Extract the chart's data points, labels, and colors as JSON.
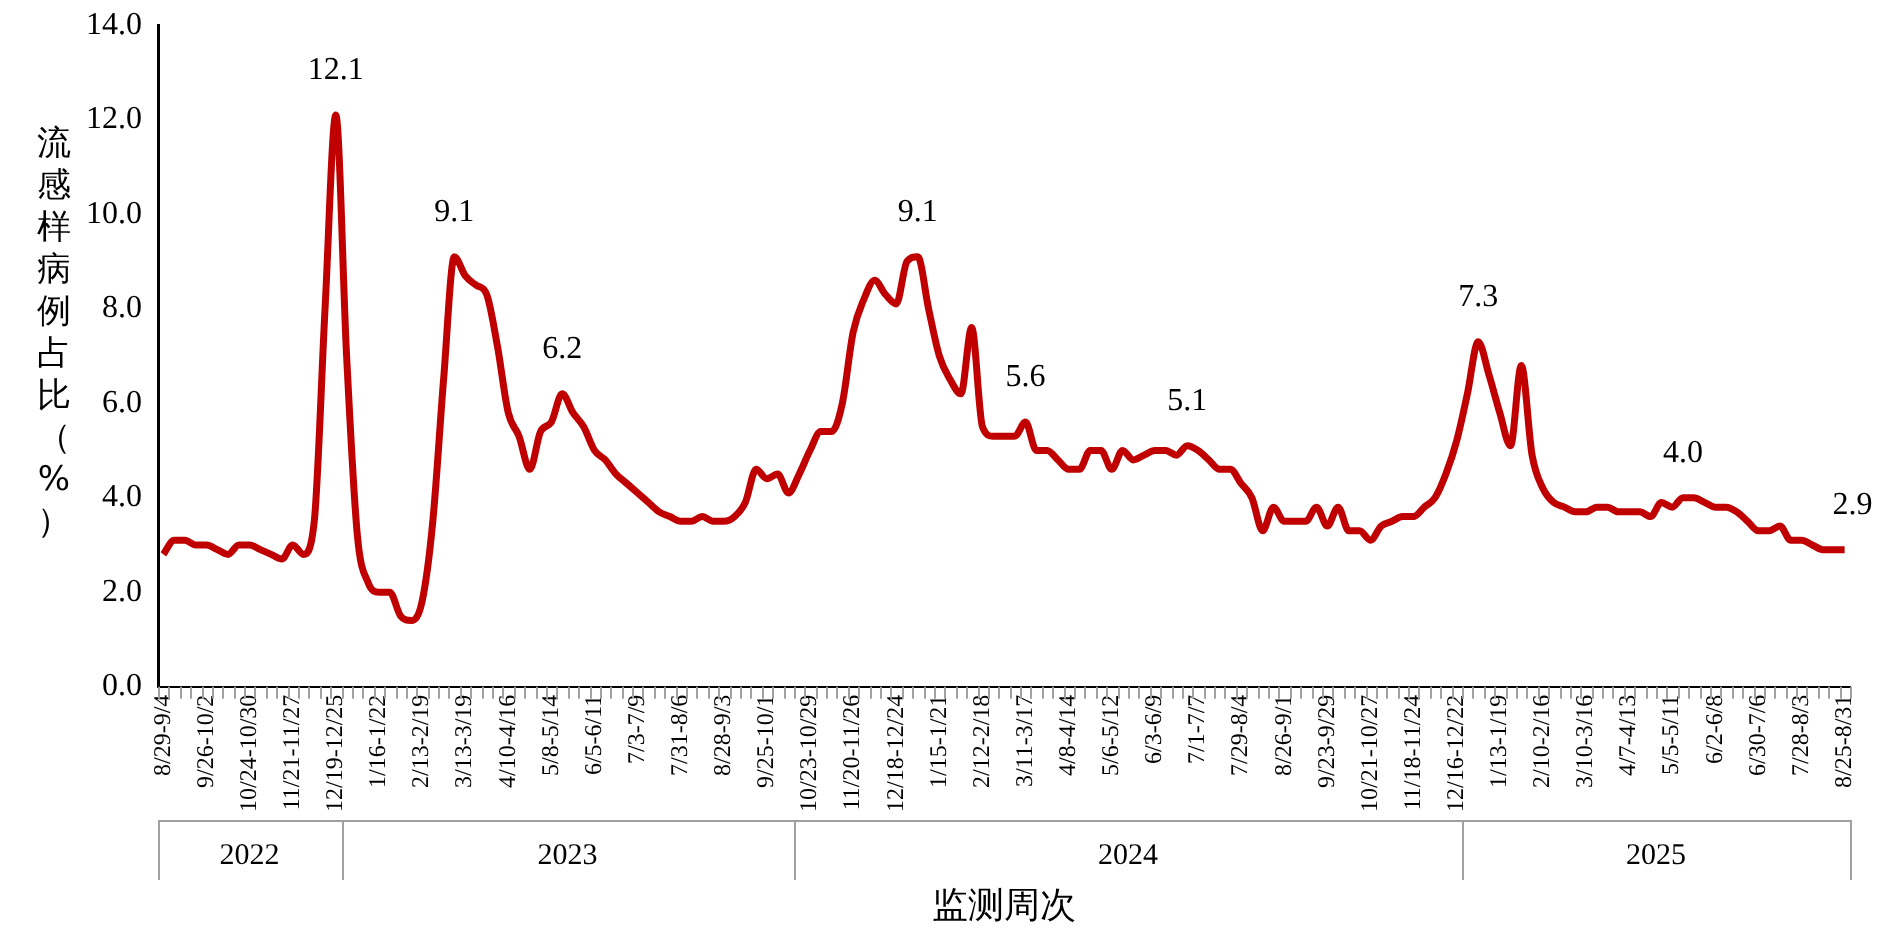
{
  "chart_data": {
    "type": "line",
    "ylabel": "流感样病例占比（%）",
    "xlabel": "监测周次",
    "marker": "none",
    "categories": [
      "8/29-9/4",
      null,
      null,
      null,
      "9/26-10/2",
      null,
      null,
      null,
      "10/24-10/30",
      null,
      null,
      null,
      "11/21-11/27",
      null,
      null,
      null,
      "12/19-12/25",
      null,
      null,
      null,
      "1/16-1/22",
      null,
      null,
      null,
      "2/13-2/19",
      null,
      null,
      null,
      "3/13-3/19",
      null,
      null,
      null,
      "4/10-4/16",
      null,
      null,
      null,
      "5/8-5/14",
      null,
      null,
      null,
      "6/5-6/11",
      null,
      null,
      null,
      "7/3-7/9",
      null,
      null,
      null,
      "7/31-8/6",
      null,
      null,
      null,
      "8/28-9/3",
      null,
      null,
      null,
      "9/25-10/1",
      null,
      null,
      null,
      "10/23-10/29",
      null,
      null,
      null,
      "11/20-11/26",
      null,
      null,
      null,
      "12/18-12/24",
      null,
      null,
      null,
      "1/15-1/21",
      null,
      null,
      null,
      "2/12-2/18",
      null,
      null,
      null,
      "3/11-3/17",
      null,
      null,
      null,
      "4/8-4/14",
      null,
      null,
      null,
      "5/6-5/12",
      null,
      null,
      null,
      "6/3-6/9",
      null,
      null,
      null,
      "7/1-7/7",
      null,
      null,
      null,
      "7/29-8/4",
      null,
      null,
      null,
      "8/26-9/1",
      null,
      null,
      null,
      "9/23-9/29",
      null,
      null,
      null,
      "10/21-10/27",
      null,
      null,
      null,
      "11/18-11/24",
      null,
      null,
      null,
      "12/16-12/22",
      null,
      null,
      null,
      "1/13-1/19",
      null,
      null,
      null,
      "2/10-2/16",
      null,
      null,
      null,
      "3/10-3/16",
      null,
      null,
      null,
      "4/7-4/13",
      null,
      null,
      null,
      "5/5-5/11",
      null,
      null,
      null,
      "6/2-6/8",
      null,
      null,
      null,
      "6/30-7/6",
      null,
      null,
      null,
      "7/28-8/3",
      null,
      null,
      null,
      "8/25-8/31"
    ],
    "series": [
      {
        "color": "#c00000",
        "values": [
          2.8,
          3.1,
          3.1,
          3.0,
          3.0,
          2.9,
          2.8,
          3.0,
          3.0,
          2.9,
          2.8,
          2.7,
          3.0,
          2.8,
          3.5,
          8.0,
          12.1,
          7.0,
          3.2,
          2.2,
          2.0,
          2.0,
          1.5,
          1.4,
          1.8,
          3.5,
          6.5,
          9.1,
          8.7,
          8.5,
          8.3,
          7.2,
          5.8,
          5.3,
          4.6,
          5.4,
          5.6,
          6.2,
          5.8,
          5.5,
          5.0,
          4.8,
          4.5,
          4.3,
          4.1,
          3.9,
          3.7,
          3.6,
          3.5,
          3.5,
          3.6,
          3.5,
          3.5,
          3.6,
          3.9,
          4.6,
          4.4,
          4.5,
          4.1,
          4.5,
          5.0,
          5.4,
          5.4,
          6.0,
          7.5,
          8.2,
          8.6,
          8.3,
          8.1,
          9.0,
          9.1,
          8.0,
          7.0,
          6.5,
          6.2,
          7.6,
          5.5,
          5.3,
          5.3,
          5.3,
          5.6,
          5.0,
          5.0,
          4.8,
          4.6,
          4.6,
          5.0,
          5.0,
          4.6,
          5.0,
          4.8,
          4.9,
          5.0,
          5.0,
          4.9,
          5.1,
          5.0,
          4.8,
          4.6,
          4.6,
          4.3,
          4.0,
          3.3,
          3.8,
          3.5,
          3.5,
          3.5,
          3.8,
          3.4,
          3.8,
          3.3,
          3.3,
          3.1,
          3.4,
          3.5,
          3.6,
          3.6,
          3.8,
          4.0,
          4.5,
          5.2,
          6.2,
          7.3,
          6.6,
          5.8,
          5.1,
          6.8,
          4.9,
          4.2,
          3.9,
          3.8,
          3.7,
          3.7,
          3.8,
          3.8,
          3.7,
          3.7,
          3.7,
          3.6,
          3.9,
          3.8,
          4.0,
          4.0,
          3.9,
          3.8,
          3.8,
          3.7,
          3.5,
          3.3,
          3.3,
          3.4,
          3.1,
          3.1,
          3.0,
          2.9,
          2.9,
          2.9
        ],
        "value_labels": [
          null,
          null,
          null,
          null,
          null,
          null,
          null,
          null,
          null,
          null,
          null,
          null,
          null,
          null,
          null,
          null,
          "12.1",
          null,
          null,
          null,
          null,
          null,
          null,
          null,
          null,
          null,
          null,
          "9.1",
          null,
          null,
          null,
          null,
          null,
          null,
          null,
          null,
          null,
          "6.2",
          null,
          null,
          null,
          null,
          null,
          null,
          null,
          null,
          null,
          null,
          null,
          null,
          null,
          null,
          null,
          null,
          null,
          null,
          null,
          null,
          null,
          null,
          null,
          null,
          null,
          null,
          null,
          null,
          null,
          null,
          null,
          null,
          "9.1",
          null,
          null,
          null,
          null,
          null,
          null,
          null,
          null,
          null,
          "5.6",
          null,
          null,
          null,
          null,
          null,
          null,
          null,
          null,
          null,
          null,
          null,
          null,
          null,
          null,
          "5.1",
          null,
          null,
          null,
          null,
          null,
          null,
          null,
          null,
          null,
          null,
          null,
          null,
          null,
          null,
          null,
          null,
          null,
          null,
          null,
          null,
          null,
          null,
          null,
          null,
          null,
          null,
          "7.3",
          null,
          null,
          null,
          null,
          null,
          null,
          null,
          null,
          null,
          null,
          null,
          null,
          null,
          null,
          null,
          null,
          null,
          null,
          "4.0",
          null,
          null,
          null,
          null,
          null,
          null,
          null,
          null,
          null,
          null,
          null,
          null,
          null,
          null,
          "2.9"
        ]
      }
    ],
    "ylim": [
      0,
      14
    ],
    "yticks": [
      {
        "value": 0,
        "label": "0.0"
      },
      {
        "value": 2,
        "label": "2.0"
      },
      {
        "value": 4,
        "label": "4.0"
      },
      {
        "value": 6,
        "label": "6.0"
      },
      {
        "value": 8,
        "label": "8.0"
      },
      {
        "value": 10,
        "label": "10.0"
      },
      {
        "value": 12,
        "label": "12.0"
      },
      {
        "value": 14,
        "label": "14.0"
      }
    ],
    "annotations": [
      "2022",
      "2023",
      "2024",
      "2025"
    ]
  }
}
